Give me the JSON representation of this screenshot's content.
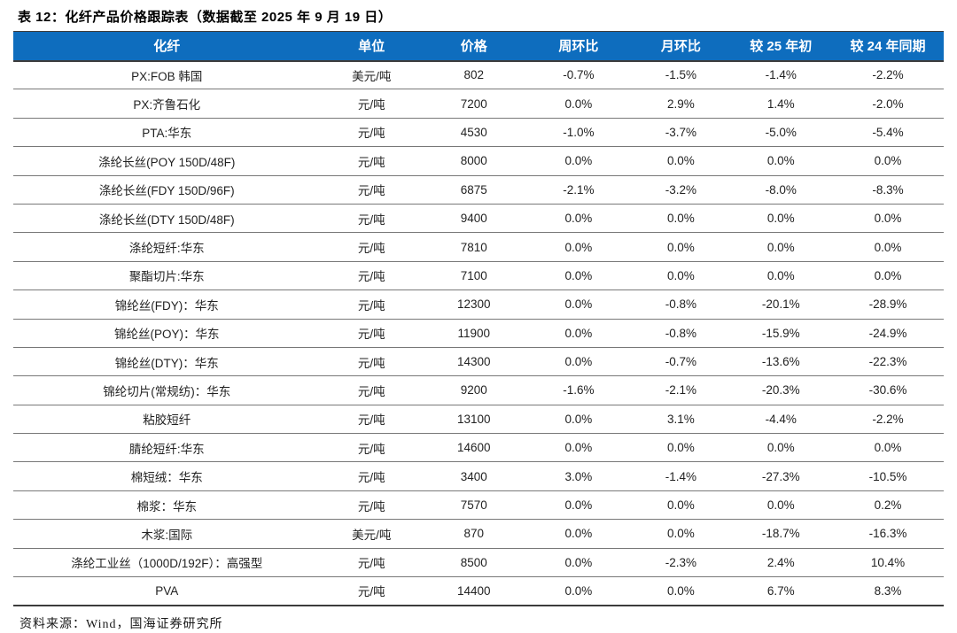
{
  "title": "表 12：化纤产品价格跟踪表（数据截至 2025 年 9 月 19 日）",
  "source": "资料来源：Wind，国海证券研究所",
  "colors": {
    "header_bg": "#0E6DBE",
    "header_text": "#FFFFFF",
    "row_border": "#787878",
    "heavy_border": "#3C3C3C",
    "text": "#222222"
  },
  "chart_data": {
    "type": "table",
    "title": "化纤产品价格跟踪表（数据截至 2025 年 9 月 19 日）",
    "columns": [
      "化纤",
      "单位",
      "价格",
      "周环比",
      "月环比",
      "较 25 年初",
      "较 24 年同期"
    ],
    "rows": [
      [
        "PX:FOB 韩国",
        "美元/吨",
        "802",
        "-0.7%",
        "-1.5%",
        "-1.4%",
        "-2.2%"
      ],
      [
        "PX:齐鲁石化",
        "元/吨",
        "7200",
        "0.0%",
        "2.9%",
        "1.4%",
        "-2.0%"
      ],
      [
        "PTA:华东",
        "元/吨",
        "4530",
        "-1.0%",
        "-3.7%",
        "-5.0%",
        "-5.4%"
      ],
      [
        "涤纶长丝(POY 150D/48F)",
        "元/吨",
        "8000",
        "0.0%",
        "0.0%",
        "0.0%",
        "0.0%"
      ],
      [
        "涤纶长丝(FDY 150D/96F)",
        "元/吨",
        "6875",
        "-2.1%",
        "-3.2%",
        "-8.0%",
        "-8.3%"
      ],
      [
        "涤纶长丝(DTY 150D/48F)",
        "元/吨",
        "9400",
        "0.0%",
        "0.0%",
        "0.0%",
        "0.0%"
      ],
      [
        "涤纶短纤:华东",
        "元/吨",
        "7810",
        "0.0%",
        "0.0%",
        "0.0%",
        "0.0%"
      ],
      [
        "聚酯切片:华东",
        "元/吨",
        "7100",
        "0.0%",
        "0.0%",
        "0.0%",
        "0.0%"
      ],
      [
        "锦纶丝(FDY)：华东",
        "元/吨",
        "12300",
        "0.0%",
        "-0.8%",
        "-20.1%",
        "-28.9%"
      ],
      [
        "锦纶丝(POY)：华东",
        "元/吨",
        "11900",
        "0.0%",
        "-0.8%",
        "-15.9%",
        "-24.9%"
      ],
      [
        "锦纶丝(DTY)：华东",
        "元/吨",
        "14300",
        "0.0%",
        "-0.7%",
        "-13.6%",
        "-22.3%"
      ],
      [
        "锦纶切片(常规纺)：华东",
        "元/吨",
        "9200",
        "-1.6%",
        "-2.1%",
        "-20.3%",
        "-30.6%"
      ],
      [
        "粘胶短纤",
        "元/吨",
        "13100",
        "0.0%",
        "3.1%",
        "-4.4%",
        "-2.2%"
      ],
      [
        "腈纶短纤:华东",
        "元/吨",
        "14600",
        "0.0%",
        "0.0%",
        "0.0%",
        "0.0%"
      ],
      [
        "棉短绒：华东",
        "元/吨",
        "3400",
        "3.0%",
        "-1.4%",
        "-27.3%",
        "-10.5%"
      ],
      [
        "棉浆：华东",
        "元/吨",
        "7570",
        "0.0%",
        "0.0%",
        "0.0%",
        "0.2%"
      ],
      [
        "木浆:国际",
        "美元/吨",
        "870",
        "0.0%",
        "0.0%",
        "-18.7%",
        "-16.3%"
      ],
      [
        "涤纶工业丝（1000D/192F）：高强型",
        "元/吨",
        "8500",
        "0.0%",
        "-2.3%",
        "2.4%",
        "10.4%"
      ],
      [
        "PVA",
        "元/吨",
        "14400",
        "0.0%",
        "0.0%",
        "6.7%",
        "8.3%"
      ]
    ]
  }
}
